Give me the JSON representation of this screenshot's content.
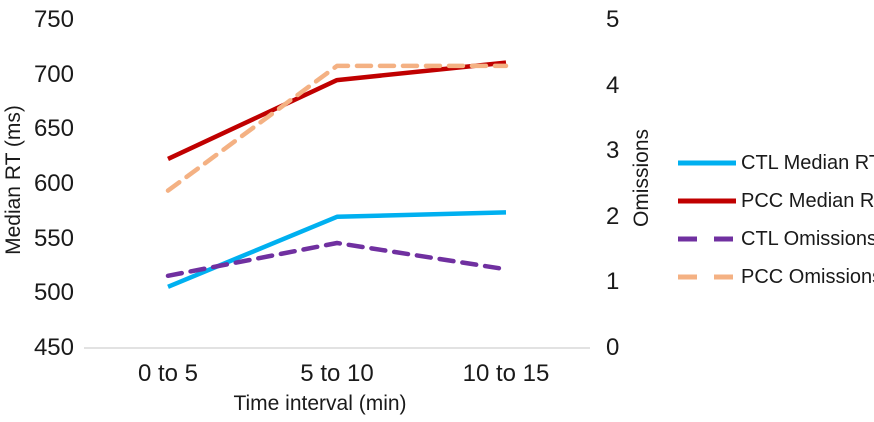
{
  "chart_data": {
    "type": "line",
    "title": "",
    "x_axis_label": "Time interval (min)",
    "x_categories": [
      "0 to 5",
      "5 to 10",
      "10 to 15"
    ],
    "left_axis": {
      "label": "Median RT (ms)",
      "ticks": [
        "750",
        "700",
        "650",
        "600",
        "550",
        "500",
        "450"
      ],
      "range": [
        450,
        750
      ]
    },
    "right_axis": {
      "label": "Omissions",
      "ticks": [
        "5",
        "4",
        "3",
        "2",
        "1",
        "0"
      ],
      "range": [
        0,
        5
      ]
    },
    "series": [
      {
        "name": "CTL Median RT",
        "axis": "left",
        "style": "solid",
        "color": "#00B0F0",
        "values": [
          506,
          570,
          574
        ]
      },
      {
        "name": "PCC Median RT",
        "axis": "left",
        "style": "solid",
        "color": "#C00000",
        "values": [
          623,
          695,
          711
        ]
      },
      {
        "name": "CTL Omissions",
        "axis": "right",
        "style": "dashed",
        "color": "#7030A0",
        "values": [
          1.1,
          1.6,
          1.2
        ]
      },
      {
        "name": "PCC Omissions",
        "axis": "right",
        "style": "dashed",
        "color": "#F4B183",
        "values": [
          2.4,
          4.3,
          4.3
        ]
      }
    ],
    "legend_position": "right",
    "grid": "baseline-only",
    "gridline_color": "#D9D9D9",
    "background_color": "#FFFFFF",
    "text_color": "#1A1A1A"
  }
}
